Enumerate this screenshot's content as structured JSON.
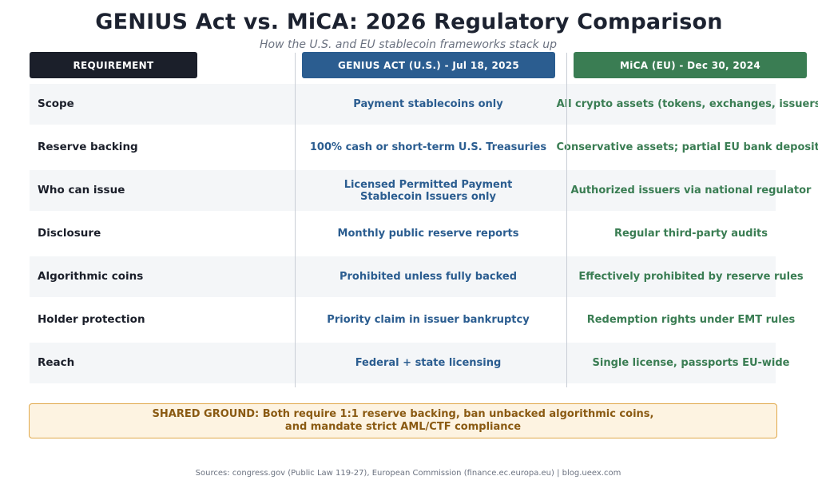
{
  "header": {
    "title": "GENIUS Act vs. MiCA: 2026 Regulatory Comparison",
    "subtitle": "How the U.S. and EU stablecoin frameworks stack up"
  },
  "columns": {
    "requirement": "REQUIREMENT",
    "genius": "GENIUS ACT (U.S.) - Jul 18, 2025",
    "mica": "MiCA (EU) - Dec 30, 2024"
  },
  "rows": [
    {
      "requirement": "Scope",
      "genius": "Payment stablecoins only",
      "mica": "All crypto assets (tokens, exchanges, issuers)"
    },
    {
      "requirement": "Reserve backing",
      "genius": "100% cash or short-term U.S. Treasuries",
      "mica": "Conservative assets; partial EU bank deposits"
    },
    {
      "requirement": "Who can issue",
      "genius": "Licensed Permitted Payment\nStablecoin Issuers only",
      "genius_line1": "Licensed Permitted Payment",
      "genius_line2": "Stablecoin Issuers only",
      "mica": "Authorized issuers via national regulator"
    },
    {
      "requirement": "Disclosure",
      "genius": "Monthly public reserve reports",
      "mica": "Regular third-party audits"
    },
    {
      "requirement": "Algorithmic coins",
      "genius": "Prohibited unless fully backed",
      "mica": "Effectively prohibited by reserve rules"
    },
    {
      "requirement": "Holder protection",
      "genius": "Priority claim in issuer bankruptcy",
      "mica": "Redemption rights under EMT rules"
    },
    {
      "requirement": "Reach",
      "genius": "Federal + state licensing",
      "mica": "Single license, passports EU-wide"
    }
  ],
  "shared": {
    "line1": "SHARED GROUND: Both require 1:1 reserve backing, ban unbacked algorithmic coins,",
    "line2": "and mandate strict AML/CTF compliance"
  },
  "footer": {
    "sources": "Sources: congress.gov (Public Law 119-27), European Commission (finance.ec.europa.eu)  |  blog.ueex.com"
  },
  "colors": {
    "genius_accent": "#2b5d90",
    "mica_accent": "#3a7d53",
    "requirement_header": "#1b1f2a",
    "shared_background": "#fdf3e1",
    "shared_border": "#e0a84a",
    "shared_text": "#8a5a12"
  }
}
